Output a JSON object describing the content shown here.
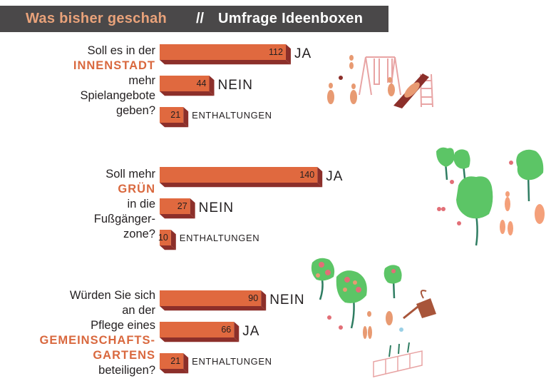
{
  "header": {
    "title": "Was bisher geschah",
    "separator": "//",
    "subtitle": "Umfrage Ideenboxen"
  },
  "questions": [
    {
      "line1": "Soll es in der",
      "highlight": "INNENSTADT",
      "line3": "mehr",
      "line4": "Spielangebote",
      "line5": "geben?"
    },
    {
      "line1": "Soll mehr",
      "highlight": "GRÜN",
      "line3": "in die",
      "line4": "Fußgänger-",
      "line5": "zone?"
    },
    {
      "line1": "Würden Sie sich",
      "line2": "an der",
      "line3": "Pflege eines",
      "highlight1": "GEMEINSCHAFTS-",
      "highlight2": "GARTENS",
      "line6": "beteiligen?"
    }
  ],
  "chart_data": [
    {
      "type": "bar",
      "categories": [
        "JA",
        "NEIN",
        "ENTHALTUNGEN"
      ],
      "values": [
        112,
        44,
        21
      ]
    },
    {
      "type": "bar",
      "categories": [
        "JA",
        "NEIN",
        "ENTHALTUNGEN"
      ],
      "values": [
        140,
        27,
        10
      ]
    },
    {
      "type": "bar",
      "categories": [
        "NEIN",
        "JA",
        "ENTHALTUNGEN"
      ],
      "values": [
        90,
        66,
        21
      ]
    }
  ],
  "colors": {
    "bar_front": "#e0693f",
    "bar_side": "#8c2f2a",
    "highlight": "#d9683e",
    "header_bg": "#4a4849",
    "header_accent": "#e9a27a"
  }
}
